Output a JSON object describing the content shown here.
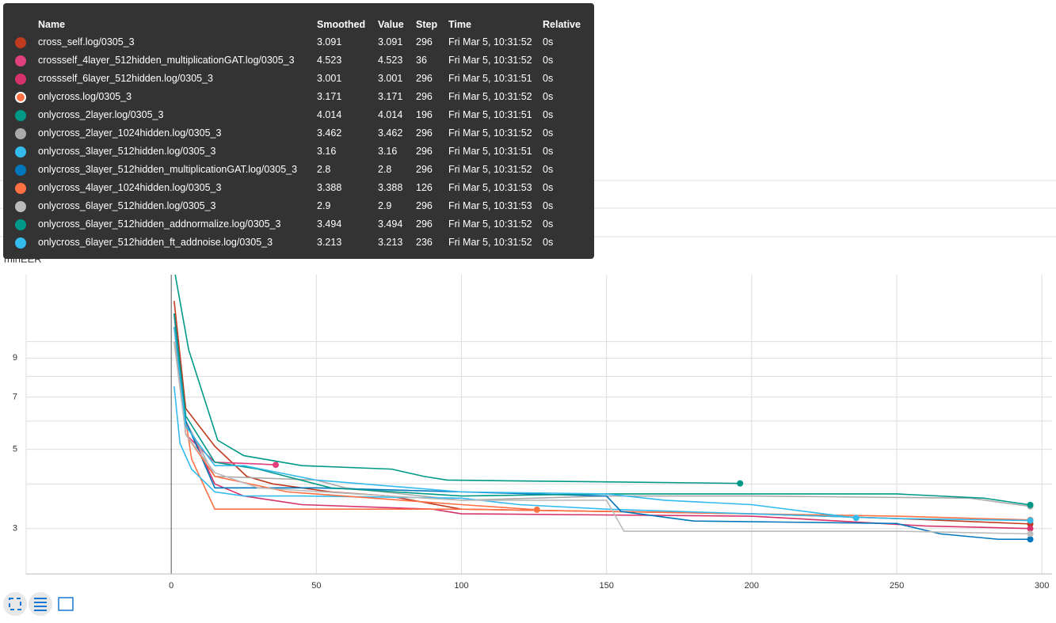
{
  "chart_data": {
    "type": "line",
    "title": "minEER",
    "log_y": true,
    "grid": true,
    "xlim": [
      -50,
      303.5
    ],
    "xticks": [
      0,
      50,
      100,
      150,
      200,
      250,
      300
    ],
    "ylim": [
      2.24,
      15.4
    ],
    "yticks": [
      3,
      5,
      7,
      9
    ],
    "yminor": [
      4,
      6,
      8,
      10
    ],
    "series": [
      {
        "name": "cross_self.log/0305_3",
        "color": "#bf3a1e",
        "x": [
          1,
          5,
          15,
          26,
          35,
          55,
          75,
          100,
          150,
          200,
          250,
          296
        ],
        "values": [
          13,
          6.5,
          5.1,
          4.2,
          4.0,
          3.8,
          3.7,
          3.4,
          3.35,
          3.3,
          3.2,
          3.091
        ]
      },
      {
        "name": "crossself_4layer_512hidden_multiplicationGAT.log/0305_3",
        "color": "#e0407b",
        "x": [
          1,
          5,
          15,
          30,
          36
        ],
        "values": [
          12,
          5.5,
          4.6,
          4.55,
          4.523
        ]
      },
      {
        "name": "crossself_6layer_512hidden.log/0305_3",
        "color": "#d6336c",
        "x": [
          1,
          5,
          15,
          25,
          45,
          90,
          100,
          200,
          230,
          260,
          296
        ],
        "values": [
          11,
          6,
          4.0,
          3.7,
          3.5,
          3.4,
          3.3,
          3.25,
          3.15,
          3.05,
          3.001
        ]
      },
      {
        "name": "onlycross.log/0305_3",
        "color": "#ff7043",
        "x": [
          1,
          7,
          15,
          100,
          150,
          250,
          296
        ],
        "values": [
          10,
          4.7,
          3.4,
          3.4,
          3.35,
          3.25,
          3.171
        ]
      },
      {
        "name": "onlycross_2layer.log/0305_3",
        "color": "#009988",
        "x": [
          1,
          6,
          16,
          25,
          45,
          76,
          87,
          95,
          196
        ],
        "values": [
          16,
          9.5,
          5.3,
          4.8,
          4.5,
          4.4,
          4.2,
          4.1,
          4.014
        ]
      },
      {
        "name": "onlycross_2layer_1024hidden.log/0305_3",
        "color": "#aaaaaa",
        "x": [
          1,
          5,
          15,
          50,
          60,
          100,
          150,
          200,
          275,
          296
        ],
        "values": [
          12,
          6,
          4.2,
          4.1,
          3.9,
          3.6,
          3.7,
          3.7,
          3.65,
          3.462
        ]
      },
      {
        "name": "onlycross_3layer_512hidden.log/0305_3",
        "color": "#33bbee",
        "x": [
          1,
          3,
          7,
          15,
          25,
          45,
          100,
          120,
          150,
          200,
          250,
          296
        ],
        "values": [
          7.5,
          5.2,
          4.4,
          3.8,
          3.7,
          3.7,
          3.65,
          3.5,
          3.4,
          3.3,
          3.2,
          3.16
        ]
      },
      {
        "name": "onlycross_3layer_512hidden_multiplicationGAT.log/0305_3",
        "color": "#0077bb",
        "x": [
          1,
          5,
          15,
          50,
          100,
          150,
          155,
          180,
          250,
          265,
          285,
          296
        ],
        "values": [
          12,
          6,
          3.9,
          3.9,
          3.8,
          3.7,
          3.35,
          3.15,
          3.1,
          2.9,
          2.8,
          2.8
        ]
      },
      {
        "name": "onlycross_4layer_1024hidden.log/0305_3",
        "color": "#ff7043",
        "x": [
          1,
          5,
          15,
          40,
          100,
          126
        ],
        "values": [
          11,
          5.5,
          4.2,
          3.8,
          3.5,
          3.388
        ]
      },
      {
        "name": "onlycross_6layer_512hidden.log/0305_3",
        "color": "#bbbbbb",
        "x": [
          1,
          5,
          15,
          30,
          75,
          100,
          150,
          156,
          250,
          296
        ],
        "values": [
          10,
          5.5,
          4.3,
          3.9,
          3.7,
          3.6,
          3.6,
          2.95,
          2.95,
          2.9
        ]
      },
      {
        "name": "onlycross_6layer_512hidden_addnormalize.log/0305_3",
        "color": "#009988",
        "x": [
          1,
          5,
          15,
          30,
          55,
          100,
          150,
          250,
          280,
          296
        ],
        "values": [
          12,
          6.2,
          4.6,
          4.4,
          3.9,
          3.7,
          3.75,
          3.75,
          3.65,
          3.494
        ]
      },
      {
        "name": "onlycross_6layer_512hidden_ft_addnoise.log/0305_3",
        "color": "#33bbee",
        "x": [
          1,
          5,
          15,
          25,
          50,
          100,
          150,
          170,
          200,
          236
        ],
        "values": [
          11,
          5.8,
          4.5,
          4.5,
          4.1,
          3.8,
          3.75,
          3.6,
          3.5,
          3.213
        ]
      }
    ]
  },
  "tooltip": {
    "columns": [
      "Name",
      "Smoothed",
      "Value",
      "Step",
      "Time",
      "Relative"
    ],
    "rows": [
      [
        3.091,
        3.091,
        296,
        "Fri Mar 5, 10:31:52",
        "0s"
      ],
      [
        4.523,
        4.523,
        36,
        "Fri Mar 5, 10:31:52",
        "0s"
      ],
      [
        3.001,
        3.001,
        296,
        "Fri Mar 5, 10:31:51",
        "0s"
      ],
      [
        3.171,
        3.171,
        296,
        "Fri Mar 5, 10:31:52",
        "0s"
      ],
      [
        4.014,
        4.014,
        196,
        "Fri Mar 5, 10:31:51",
        "0s"
      ],
      [
        3.462,
        3.462,
        296,
        "Fri Mar 5, 10:31:52",
        "0s"
      ],
      [
        3.16,
        3.16,
        296,
        "Fri Mar 5, 10:31:51",
        "0s"
      ],
      [
        2.8,
        2.8,
        296,
        "Fri Mar 5, 10:31:52",
        "0s"
      ],
      [
        3.388,
        3.388,
        126,
        "Fri Mar 5, 10:31:53",
        "0s"
      ],
      [
        2.9,
        2.9,
        296,
        "Fri Mar 5, 10:31:53",
        "0s"
      ],
      [
        3.494,
        3.494,
        296,
        "Fri Mar 5, 10:31:52",
        "0s"
      ],
      [
        3.213,
        3.213,
        236,
        "Fri Mar 5, 10:31:52",
        "0s"
      ]
    ]
  }
}
